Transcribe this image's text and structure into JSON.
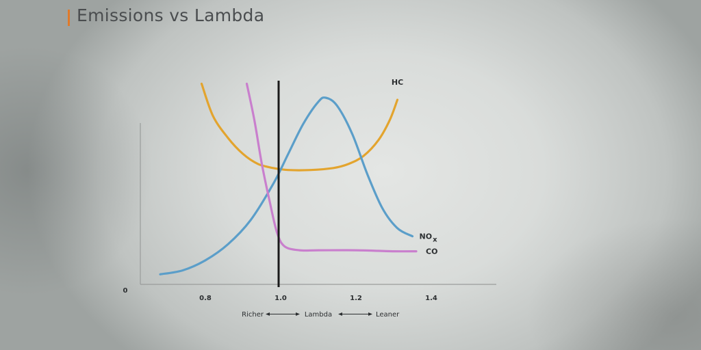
{
  "slide": {
    "title": "Emissions vs Lambda"
  },
  "chart_data": {
    "type": "line",
    "title": "Emissions vs Lambda",
    "xlabel": {
      "left": "Richer",
      "center": "Lambda",
      "right": "Leaner"
    },
    "ylabel": "",
    "y_zero_label": "0",
    "xlim": [
      0.65,
      1.45
    ],
    "ylim": [
      0,
      100
    ],
    "x_ticks": [
      {
        "value": 0.8,
        "label": "0.8"
      },
      {
        "value": 1.0,
        "label": "1.0"
      },
      {
        "value": 1.2,
        "label": "1.2"
      },
      {
        "value": 1.4,
        "label": "1.4"
      }
    ],
    "stoichiometric_line": 1.0,
    "grid": false,
    "legend": "inline-labels",
    "series": [
      {
        "name": "HC",
        "label_main": "HC",
        "label_sub": "",
        "color": "#e3a42e",
        "x": [
          0.79,
          0.82,
          0.86,
          0.9,
          0.94,
          0.98,
          1.02,
          1.08,
          1.14,
          1.18,
          1.22,
          1.26,
          1.29,
          1.31
        ],
        "y": [
          100,
          84,
          73,
          65,
          60,
          58,
          57,
          57,
          58,
          60,
          64,
          72,
          82,
          92
        ]
      },
      {
        "name": "NOX",
        "label_main": "NO",
        "label_sub": "x",
        "color": "#5b9ec9",
        "x": [
          0.68,
          0.74,
          0.8,
          0.86,
          0.92,
          0.98,
          1.02,
          1.06,
          1.1,
          1.12,
          1.15,
          1.19,
          1.23,
          1.27,
          1.31,
          1.35
        ],
        "y": [
          5,
          7,
          12,
          20,
          32,
          50,
          65,
          80,
          91,
          93,
          89,
          75,
          55,
          38,
          28,
          24
        ]
      },
      {
        "name": "CO",
        "label_main": "CO",
        "label_sub": "",
        "color": "#c97fcd",
        "x": [
          0.91,
          0.93,
          0.95,
          0.97,
          0.99,
          1.01,
          1.05,
          1.1,
          1.2,
          1.3,
          1.36
        ],
        "y": [
          100,
          82,
          60,
          42,
          26,
          19,
          17,
          17,
          17,
          16.5,
          16.5
        ]
      }
    ]
  }
}
